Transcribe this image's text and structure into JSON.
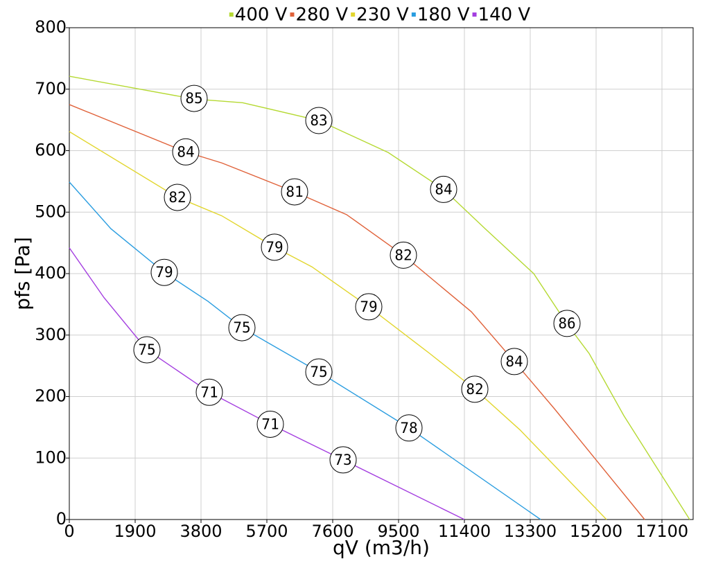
{
  "chart_data": {
    "type": "line",
    "xlabel": "qV (m3/h)",
    "ylabel": "pfs [Pa]",
    "xlim": [
      0,
      18000
    ],
    "ylim": [
      0,
      800
    ],
    "xticks": [
      0,
      1900,
      3800,
      5700,
      7600,
      9500,
      11400,
      13300,
      15200,
      17100
    ],
    "yticks": [
      0,
      100,
      200,
      300,
      400,
      500,
      600,
      700,
      800
    ],
    "grid": true,
    "legend": "top",
    "series": [
      {
        "name": "400 V",
        "color": "#b5d932",
        "x": [
          0,
          3600,
          5000,
          7200,
          9200,
          10800,
          12000,
          13400,
          14360,
          15000,
          16000,
          17900
        ],
        "values": [
          721,
          684,
          678,
          649,
          597,
          537,
          473,
          400,
          318,
          270,
          169,
          0
        ],
        "labels": [
          {
            "x": 3600,
            "y": 685,
            "text": "85"
          },
          {
            "x": 7200,
            "y": 649,
            "text": "83"
          },
          {
            "x": 10800,
            "y": 537,
            "text": "84"
          },
          {
            "x": 14360,
            "y": 319,
            "text": "86"
          }
        ]
      },
      {
        "name": "280 V",
        "color": "#e0623a",
        "x": [
          0,
          3360,
          4400,
          6500,
          8000,
          9640,
          11600,
          12840,
          14000,
          16600
        ],
        "values": [
          675,
          598,
          580,
          533,
          496,
          430,
          338,
          257,
          180,
          0
        ],
        "labels": [
          {
            "x": 3360,
            "y": 598,
            "text": "84"
          },
          {
            "x": 6500,
            "y": 533,
            "text": "81"
          },
          {
            "x": 9640,
            "y": 430,
            "text": "82"
          },
          {
            "x": 12840,
            "y": 257,
            "text": "84"
          }
        ]
      },
      {
        "name": "230 V",
        "color": "#e2d62e",
        "x": [
          0,
          3120,
          4400,
          5920,
          7000,
          8640,
          10400,
          11700,
          13000,
          15500
        ],
        "values": [
          631,
          524,
          494,
          443,
          411,
          346,
          270,
          212,
          146,
          0
        ],
        "labels": [
          {
            "x": 3120,
            "y": 524,
            "text": "82"
          },
          {
            "x": 5920,
            "y": 443,
            "text": "79"
          },
          {
            "x": 8640,
            "y": 346,
            "text": "79"
          },
          {
            "x": 11700,
            "y": 212,
            "text": "82"
          }
        ]
      },
      {
        "name": "180 V",
        "color": "#2a9de0",
        "x": [
          0,
          1200,
          2740,
          4000,
          4980,
          7200,
          9800,
          13600
        ],
        "values": [
          549,
          473,
          402,
          355,
          312,
          240,
          149,
          0
        ],
        "labels": [
          {
            "x": 2740,
            "y": 402,
            "text": "79"
          },
          {
            "x": 4980,
            "y": 312,
            "text": "75"
          },
          {
            "x": 7200,
            "y": 240,
            "text": "75"
          },
          {
            "x": 9800,
            "y": 149,
            "text": "78"
          }
        ]
      },
      {
        "name": "140 V",
        "color": "#a43ee0",
        "x": [
          0,
          1000,
          2240,
          4040,
          5800,
          7900,
          11400
        ],
        "values": [
          442,
          361,
          276,
          207,
          155,
          97,
          0
        ],
        "labels": [
          {
            "x": 2240,
            "y": 276,
            "text": "75"
          },
          {
            "x": 4040,
            "y": 207,
            "text": "71"
          },
          {
            "x": 5800,
            "y": 155,
            "text": "71"
          },
          {
            "x": 7900,
            "y": 97,
            "text": "73"
          }
        ]
      }
    ]
  }
}
